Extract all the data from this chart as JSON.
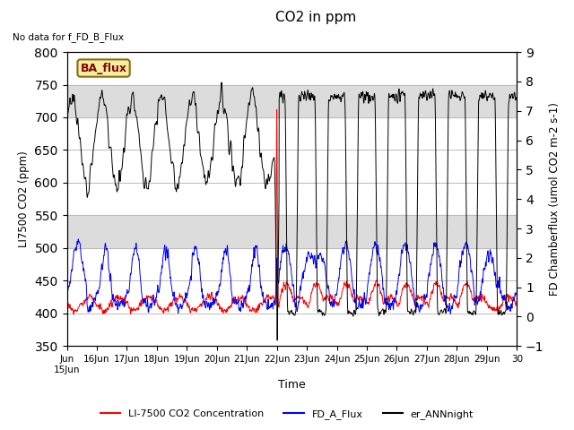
{
  "title": "CO2 in ppm",
  "top_left_text": "No data for f_FD_B_Flux",
  "ylabel_left": "LI7500 CO2 (ppm)",
  "ylabel_right": "FD Chamberflux (umol CO2 m-2 s-1)",
  "xlabel": "Time",
  "ylim_left": [
    350,
    800
  ],
  "ylim_right": [
    -1.0,
    9.0
  ],
  "yticks_left": [
    350,
    400,
    450,
    500,
    550,
    600,
    650,
    700,
    750,
    800
  ],
  "yticks_right": [
    -1.0,
    0.0,
    1.0,
    2.0,
    3.0,
    4.0,
    5.0,
    6.0,
    7.0,
    8.0,
    9.0
  ],
  "legend_entries": [
    "LI-7500 CO2 Concentration",
    "FD_A_Flux",
    "er_ANNnight"
  ],
  "box_label": "BA_flux",
  "box_color": "#f5f0a0",
  "box_border": "#8B6914",
  "hband1": [
    500,
    550
  ],
  "hband2": [
    700,
    750
  ],
  "hband_color": "#dcdcdc",
  "days": 15,
  "n_points": 3000
}
